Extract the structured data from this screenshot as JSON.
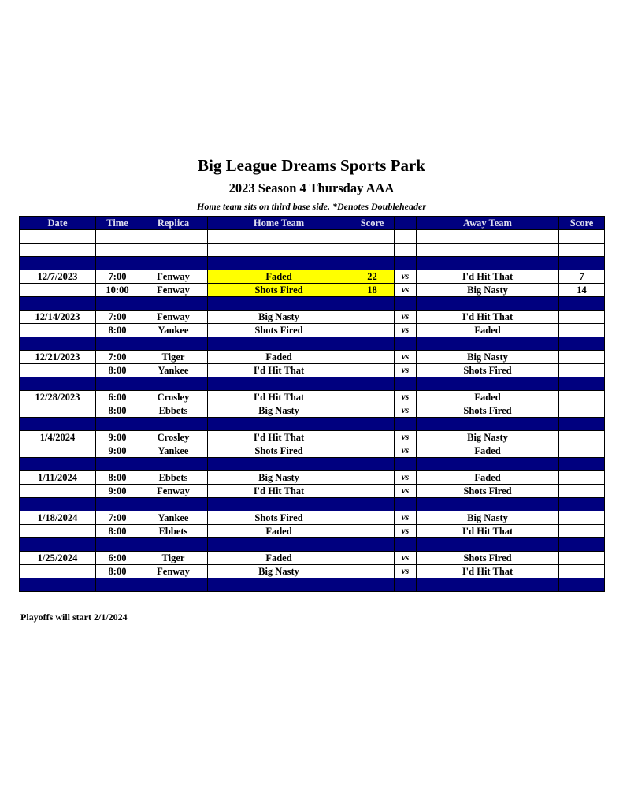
{
  "title": "Big League Dreams Sports Park",
  "subtitle": "2023 Season 4 Thursday AAA",
  "note": "Home team sits on third base side.  *Denotes Doubleheader",
  "columns": [
    "Date",
    "Time",
    "Replica",
    "Home Team",
    "Score",
    "",
    "Away Team",
    "Score"
  ],
  "highlight_color": "#ffff00",
  "header_color": "#00007f",
  "games": [
    {
      "date": "12/7/2023",
      "time": "7:00",
      "replica": "Fenway",
      "home": "Faded",
      "home_score": "22",
      "vs": "vs",
      "away": "I'd Hit That",
      "away_score": "7",
      "highlight": true
    },
    {
      "date": "",
      "time": "10:00",
      "replica": "Fenway",
      "home": "Shots Fired",
      "home_score": "18",
      "vs": "vs",
      "away": "Big Nasty",
      "away_score": "14",
      "highlight": true
    },
    {
      "date": "12/14/2023",
      "time": "7:00",
      "replica": "Fenway",
      "home": "Big Nasty",
      "home_score": "",
      "vs": "vs",
      "away": "I'd Hit That",
      "away_score": ""
    },
    {
      "date": "",
      "time": "8:00",
      "replica": "Yankee",
      "home": "Shots Fired",
      "home_score": "",
      "vs": "vs",
      "away": "Faded",
      "away_score": ""
    },
    {
      "date": "12/21/2023",
      "time": "7:00",
      "replica": "Tiger",
      "home": "Faded",
      "home_score": "",
      "vs": "vs",
      "away": "Big Nasty",
      "away_score": ""
    },
    {
      "date": "",
      "time": "8:00",
      "replica": "Yankee",
      "home": "I'd Hit That",
      "home_score": "",
      "vs": "vs",
      "away": "Shots Fired",
      "away_score": ""
    },
    {
      "date": "12/28/2023",
      "time": "6:00",
      "replica": "Crosley",
      "home": "I'd Hit That",
      "home_score": "",
      "vs": "vs",
      "away": "Faded",
      "away_score": ""
    },
    {
      "date": "",
      "time": "8:00",
      "replica": "Ebbets",
      "home": "Big Nasty",
      "home_score": "",
      "vs": "vs",
      "away": "Shots Fired",
      "away_score": ""
    },
    {
      "date": "1/4/2024",
      "time": "9:00",
      "replica": "Crosley",
      "home": "I'd Hit That",
      "home_score": "",
      "vs": "vs",
      "away": "Big Nasty",
      "away_score": ""
    },
    {
      "date": "",
      "time": "9:00",
      "replica": "Yankee",
      "home": "Shots Fired",
      "home_score": "",
      "vs": "vs",
      "away": "Faded",
      "away_score": ""
    },
    {
      "date": "1/11/2024",
      "time": "8:00",
      "replica": "Ebbets",
      "home": "Big Nasty",
      "home_score": "",
      "vs": "vs",
      "away": "Faded",
      "away_score": ""
    },
    {
      "date": "",
      "time": "9:00",
      "replica": "Fenway",
      "home": "I'd Hit That",
      "home_score": "",
      "vs": "vs",
      "away": "Shots Fired",
      "away_score": ""
    },
    {
      "date": "1/18/2024",
      "time": "7:00",
      "replica": "Yankee",
      "home": "Shots Fired",
      "home_score": "",
      "vs": "vs",
      "away": "Big Nasty",
      "away_score": ""
    },
    {
      "date": "",
      "time": "8:00",
      "replica": "Ebbets",
      "home": "Faded",
      "home_score": "",
      "vs": "vs",
      "away": "I'd Hit That",
      "away_score": ""
    },
    {
      "date": "1/25/2024",
      "time": "6:00",
      "replica": "Tiger",
      "home": "Faded",
      "home_score": "",
      "vs": "vs",
      "away": "Shots Fired",
      "away_score": ""
    },
    {
      "date": "",
      "time": "8:00",
      "replica": "Fenway",
      "home": "Big Nasty",
      "home_score": "",
      "vs": "vs",
      "away": "I'd Hit That",
      "away_score": ""
    }
  ],
  "footer": "Playoffs will start 2/1/2024"
}
